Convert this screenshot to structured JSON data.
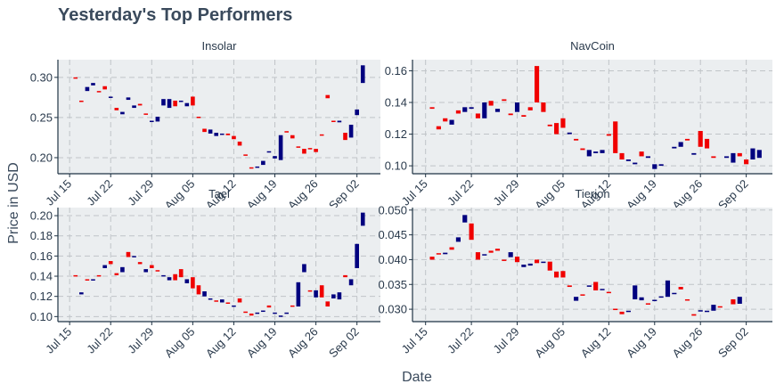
{
  "colors": {
    "increasing": "#00007f",
    "decreasing": "#f00000",
    "panel_bg": "#ebeef0",
    "grid": "#c0c4c8",
    "axis": "#1f3344",
    "text": "#2a3a4c"
  },
  "chart_data": {
    "type": "candlestick",
    "title": "Yesterday's Top Performers",
    "xlabel": "Date",
    "ylabel": "Price in USD",
    "x_tick_labels": [
      "Jul 15",
      "Jul 22",
      "Jul 29",
      "Aug 05",
      "Aug 12",
      "Aug 19",
      "Aug 26",
      "Sep 02"
    ],
    "x_tick_dates": [
      "2019-07-15",
      "2019-07-22",
      "2019-07-29",
      "2019-08-05",
      "2019-08-12",
      "2019-08-19",
      "2019-08-26",
      "2019-09-02"
    ],
    "xlim": [
      "2019-07-13",
      "2019-09-06"
    ],
    "grid": true,
    "legend": "none",
    "panels": [
      {
        "title": "Insolar",
        "ylim": [
          0.18,
          0.322
        ],
        "yticks": [
          0.2,
          0.25,
          0.3
        ],
        "ytick_labels": [
          "0.20",
          "0.25",
          "0.30"
        ],
        "candles": [
          [
            "2019-07-16",
            0.3,
            0.299
          ],
          [
            "2019-07-17",
            0.271,
            0.27
          ],
          [
            "2019-07-18",
            0.283,
            0.288
          ],
          [
            "2019-07-19",
            0.29,
            0.293
          ],
          [
            "2019-07-20",
            0.283,
            0.282
          ],
          [
            "2019-07-21",
            0.289,
            0.285
          ],
          [
            "2019-07-22",
            0.275,
            0.276
          ],
          [
            "2019-07-23",
            0.262,
            0.259
          ],
          [
            "2019-07-24",
            0.254,
            0.257
          ],
          [
            "2019-07-25",
            0.272,
            0.275
          ],
          [
            "2019-07-26",
            0.262,
            0.265
          ],
          [
            "2019-07-27",
            0.267,
            0.265
          ],
          [
            "2019-07-28",
            0.255,
            0.254
          ],
          [
            "2019-07-29",
            0.245,
            0.246
          ],
          [
            "2019-07-30",
            0.245,
            0.251
          ],
          [
            "2019-07-31",
            0.265,
            0.273
          ],
          [
            "2019-08-01",
            0.262,
            0.273
          ],
          [
            "2019-08-02",
            0.271,
            0.264
          ],
          [
            "2019-08-03",
            0.27,
            0.271
          ],
          [
            "2019-08-04",
            0.264,
            0.268
          ],
          [
            "2019-08-05",
            0.276,
            0.265
          ],
          [
            "2019-08-06",
            0.251,
            0.25
          ],
          [
            "2019-08-07",
            0.236,
            0.232
          ],
          [
            "2019-08-08",
            0.23,
            0.235
          ],
          [
            "2019-08-09",
            0.227,
            0.231
          ],
          [
            "2019-08-10",
            0.229,
            0.23
          ],
          [
            "2019-08-11",
            0.23,
            0.228
          ],
          [
            "2019-08-12",
            0.227,
            0.223
          ],
          [
            "2019-08-13",
            0.22,
            0.215
          ],
          [
            "2019-08-14",
            0.204,
            0.203
          ],
          [
            "2019-08-15",
            0.188,
            0.187
          ],
          [
            "2019-08-16",
            0.188,
            0.189
          ],
          [
            "2019-08-17",
            0.191,
            0.196
          ],
          [
            "2019-08-18",
            0.207,
            0.208
          ],
          [
            "2019-08-19",
            0.199,
            0.202
          ],
          [
            "2019-08-20",
            0.197,
            0.228
          ],
          [
            "2019-08-21",
            0.233,
            0.232
          ],
          [
            "2019-08-22",
            0.228,
            0.224
          ],
          [
            "2019-08-23",
            0.214,
            0.213
          ],
          [
            "2019-08-24",
            0.211,
            0.205
          ],
          [
            "2019-08-25",
            0.212,
            0.211
          ],
          [
            "2019-08-26",
            0.211,
            0.207
          ],
          [
            "2019-08-27",
            0.229,
            0.228
          ],
          [
            "2019-08-28",
            0.278,
            0.274
          ],
          [
            "2019-08-29",
            0.246,
            0.245
          ],
          [
            "2019-08-30",
            0.244,
            0.246
          ],
          [
            "2019-08-31",
            0.231,
            0.222
          ],
          [
            "2019-09-01",
            0.225,
            0.241
          ],
          [
            "2019-09-02",
            0.253,
            0.26
          ],
          [
            "2019-09-03",
            0.293,
            0.315
          ]
        ]
      },
      {
        "title": "NavCoin",
        "ylim": [
          0.095,
          0.167
        ],
        "yticks": [
          0.1,
          0.12,
          0.14,
          0.16
        ],
        "ytick_labels": [
          "0.10",
          "0.12",
          "0.14",
          "0.16"
        ],
        "candles": [
          [
            "2019-07-16",
            0.137,
            0.136
          ],
          [
            "2019-07-17",
            0.125,
            0.123
          ],
          [
            "2019-07-18",
            0.13,
            0.128
          ],
          [
            "2019-07-19",
            0.126,
            0.129
          ],
          [
            "2019-07-20",
            0.135,
            0.133
          ],
          [
            "2019-07-21",
            0.134,
            0.137
          ],
          [
            "2019-07-22",
            0.136,
            0.137
          ],
          [
            "2019-07-23",
            0.133,
            0.13
          ],
          [
            "2019-07-24",
            0.13,
            0.14
          ],
          [
            "2019-07-25",
            0.141,
            0.138
          ],
          [
            "2019-07-26",
            0.134,
            0.136
          ],
          [
            "2019-07-27",
            0.142,
            0.141
          ],
          [
            "2019-07-28",
            0.133,
            0.132
          ],
          [
            "2019-07-29",
            0.134,
            0.14
          ],
          [
            "2019-07-30",
            0.132,
            0.131
          ],
          [
            "2019-07-31",
            0.137,
            0.135
          ],
          [
            "2019-08-01",
            0.163,
            0.14
          ],
          [
            "2019-08-02",
            0.14,
            0.134
          ],
          [
            "2019-08-03",
            0.126,
            0.125
          ],
          [
            "2019-08-04",
            0.127,
            0.12
          ],
          [
            "2019-08-05",
            0.13,
            0.124
          ],
          [
            "2019-08-06",
            0.12,
            0.121
          ],
          [
            "2019-08-07",
            0.117,
            0.116
          ],
          [
            "2019-08-08",
            0.111,
            0.11
          ],
          [
            "2019-08-09",
            0.106,
            0.11
          ],
          [
            "2019-08-10",
            0.108,
            0.109
          ],
          [
            "2019-08-11",
            0.108,
            0.11
          ],
          [
            "2019-08-12",
            0.12,
            0.119
          ],
          [
            "2019-08-13",
            0.128,
            0.108
          ],
          [
            "2019-08-14",
            0.108,
            0.104
          ],
          [
            "2019-08-15",
            0.103,
            0.104
          ],
          [
            "2019-08-16",
            0.101,
            0.102
          ],
          [
            "2019-08-17",
            0.109,
            0.106
          ],
          [
            "2019-08-18",
            0.105,
            0.106
          ],
          [
            "2019-08-19",
            0.098,
            0.101
          ],
          [
            "2019-08-20",
            0.1,
            0.101
          ],
          [
            "2019-08-22",
            0.111,
            0.112
          ],
          [
            "2019-08-23",
            0.112,
            0.115
          ],
          [
            "2019-08-24",
            0.117,
            0.116
          ],
          [
            "2019-08-25",
            0.107,
            0.108
          ],
          [
            "2019-08-26",
            0.122,
            0.112
          ],
          [
            "2019-08-27",
            0.117,
            0.111
          ],
          [
            "2019-08-28",
            0.106,
            0.105
          ],
          [
            "2019-08-30",
            0.105,
            0.106
          ],
          [
            "2019-08-31",
            0.102,
            0.108
          ],
          [
            "2019-09-01",
            0.108,
            0.106
          ],
          [
            "2019-09-02",
            0.104,
            0.101
          ],
          [
            "2019-09-03",
            0.104,
            0.111
          ],
          [
            "2019-09-04",
            0.105,
            0.11
          ]
        ]
      },
      {
        "title": "Tael",
        "ylim": [
          0.095,
          0.208
        ],
        "yticks": [
          0.1,
          0.12,
          0.14,
          0.16,
          0.18,
          0.2
        ],
        "ytick_labels": [
          "0.10",
          "0.12",
          "0.14",
          "0.16",
          "0.18",
          "0.20"
        ],
        "candles": [
          [
            "2019-07-16",
            0.141,
            0.14
          ],
          [
            "2019-07-17",
            0.122,
            0.124
          ],
          [
            "2019-07-18",
            0.137,
            0.136
          ],
          [
            "2019-07-19",
            0.136,
            0.137
          ],
          [
            "2019-07-20",
            0.141,
            0.14
          ],
          [
            "2019-07-21",
            0.148,
            0.151
          ],
          [
            "2019-07-22",
            0.155,
            0.152
          ],
          [
            "2019-07-23",
            0.143,
            0.141
          ],
          [
            "2019-07-24",
            0.144,
            0.149
          ],
          [
            "2019-07-25",
            0.164,
            0.159
          ],
          [
            "2019-07-26",
            0.159,
            0.16
          ],
          [
            "2019-07-27",
            0.154,
            0.152
          ],
          [
            "2019-07-28",
            0.144,
            0.147
          ],
          [
            "2019-07-29",
            0.151,
            0.148
          ],
          [
            "2019-07-30",
            0.146,
            0.145
          ],
          [
            "2019-07-31",
            0.14,
            0.141
          ],
          [
            "2019-08-01",
            0.136,
            0.139
          ],
          [
            "2019-08-02",
            0.142,
            0.136
          ],
          [
            "2019-08-03",
            0.147,
            0.139
          ],
          [
            "2019-08-04",
            0.133,
            0.137
          ],
          [
            "2019-08-05",
            0.139,
            0.128
          ],
          [
            "2019-08-06",
            0.131,
            0.122
          ],
          [
            "2019-08-07",
            0.12,
            0.125
          ],
          [
            "2019-08-08",
            0.117,
            0.118
          ],
          [
            "2019-08-09",
            0.116,
            0.115
          ],
          [
            "2019-08-10",
            0.114,
            0.117
          ],
          [
            "2019-08-11",
            0.114,
            0.113
          ],
          [
            "2019-08-12",
            0.11,
            0.111
          ],
          [
            "2019-08-13",
            0.118,
            0.114
          ],
          [
            "2019-08-14",
            0.105,
            0.104
          ],
          [
            "2019-08-15",
            0.103,
            0.101
          ],
          [
            "2019-08-16",
            0.103,
            0.104
          ],
          [
            "2019-08-17",
            0.105,
            0.106
          ],
          [
            "2019-08-18",
            0.111,
            0.109
          ],
          [
            "2019-08-19",
            0.103,
            0.104
          ],
          [
            "2019-08-20",
            0.1,
            0.101
          ],
          [
            "2019-08-21",
            0.103,
            0.104
          ],
          [
            "2019-08-22",
            0.111,
            0.11
          ],
          [
            "2019-08-23",
            0.11,
            0.134
          ],
          [
            "2019-08-24",
            0.144,
            0.152
          ],
          [
            "2019-08-25",
            0.126,
            0.125
          ],
          [
            "2019-08-26",
            0.119,
            0.126
          ],
          [
            "2019-08-27",
            0.131,
            0.119
          ],
          [
            "2019-08-28",
            0.115,
            0.11
          ],
          [
            "2019-08-29",
            0.118,
            0.122
          ],
          [
            "2019-08-30",
            0.117,
            0.124
          ],
          [
            "2019-08-31",
            0.141,
            0.139
          ],
          [
            "2019-09-01",
            0.131,
            0.137
          ],
          [
            "2019-09-02",
            0.148,
            0.172
          ],
          [
            "2019-09-03",
            0.19,
            0.203
          ]
        ]
      },
      {
        "title": "Tierion",
        "ylim": [
          0.0275,
          0.0505
        ],
        "yticks": [
          0.03,
          0.035,
          0.04,
          0.045,
          0.05
        ],
        "ytick_labels": [
          "0.030",
          "0.035",
          "0.040",
          "0.045",
          "0.050"
        ],
        "candles": [
          [
            "2019-07-16",
            0.0406,
            0.04
          ],
          [
            "2019-07-17",
            0.0413,
            0.0412
          ],
          [
            "2019-07-18",
            0.0411,
            0.0414
          ],
          [
            "2019-07-19",
            0.0425,
            0.042
          ],
          [
            "2019-07-20",
            0.0436,
            0.0445
          ],
          [
            "2019-07-21",
            0.0475,
            0.049
          ],
          [
            "2019-07-22",
            0.0473,
            0.044
          ],
          [
            "2019-07-23",
            0.0415,
            0.04
          ],
          [
            "2019-07-24",
            0.041,
            0.0411
          ],
          [
            "2019-07-25",
            0.0418,
            0.0414
          ],
          [
            "2019-07-26",
            0.0422,
            0.0418
          ],
          [
            "2019-07-27",
            0.04,
            0.0399
          ],
          [
            "2019-07-28",
            0.0405,
            0.0415
          ],
          [
            "2019-07-29",
            0.0406,
            0.0395
          ],
          [
            "2019-07-30",
            0.0385,
            0.039
          ],
          [
            "2019-07-31",
            0.0388,
            0.0392
          ],
          [
            "2019-08-01",
            0.04,
            0.0393
          ],
          [
            "2019-08-02",
            0.0394,
            0.0396
          ],
          [
            "2019-08-03",
            0.0396,
            0.0378
          ],
          [
            "2019-08-04",
            0.0376,
            0.0364
          ],
          [
            "2019-08-05",
            0.0377,
            0.0364
          ],
          [
            "2019-08-06",
            0.0348,
            0.0345
          ],
          [
            "2019-08-07",
            0.0317,
            0.0325
          ],
          [
            "2019-08-08",
            0.033,
            0.0328
          ],
          [
            "2019-08-09",
            0.0347,
            0.0348
          ],
          [
            "2019-08-10",
            0.0355,
            0.0338
          ],
          [
            "2019-08-11",
            0.034,
            0.0341
          ],
          [
            "2019-08-12",
            0.0335,
            0.0333
          ],
          [
            "2019-08-13",
            0.0301,
            0.03
          ],
          [
            "2019-08-14",
            0.0295,
            0.029
          ],
          [
            "2019-08-15",
            0.0296,
            0.0297
          ],
          [
            "2019-08-16",
            0.032,
            0.0348
          ],
          [
            "2019-08-17",
            0.0318,
            0.0324
          ],
          [
            "2019-08-18",
            0.0312,
            0.0311
          ],
          [
            "2019-08-19",
            0.0318,
            0.0319
          ],
          [
            "2019-08-20",
            0.0325,
            0.0326
          ],
          [
            "2019-08-21",
            0.0325,
            0.0358
          ],
          [
            "2019-08-22",
            0.0332,
            0.0333
          ],
          [
            "2019-08-23",
            0.0345,
            0.034
          ],
          [
            "2019-08-24",
            0.032,
            0.0319
          ],
          [
            "2019-08-25",
            0.029,
            0.0287
          ],
          [
            "2019-08-26",
            0.0297,
            0.0298
          ],
          [
            "2019-08-27",
            0.0296,
            0.0297
          ],
          [
            "2019-08-28",
            0.0297,
            0.0309
          ],
          [
            "2019-08-29",
            0.0306,
            0.0305
          ],
          [
            "2019-08-31",
            0.032,
            0.031
          ],
          [
            "2019-09-01",
            0.0311,
            0.0325
          ]
        ]
      }
    ]
  }
}
